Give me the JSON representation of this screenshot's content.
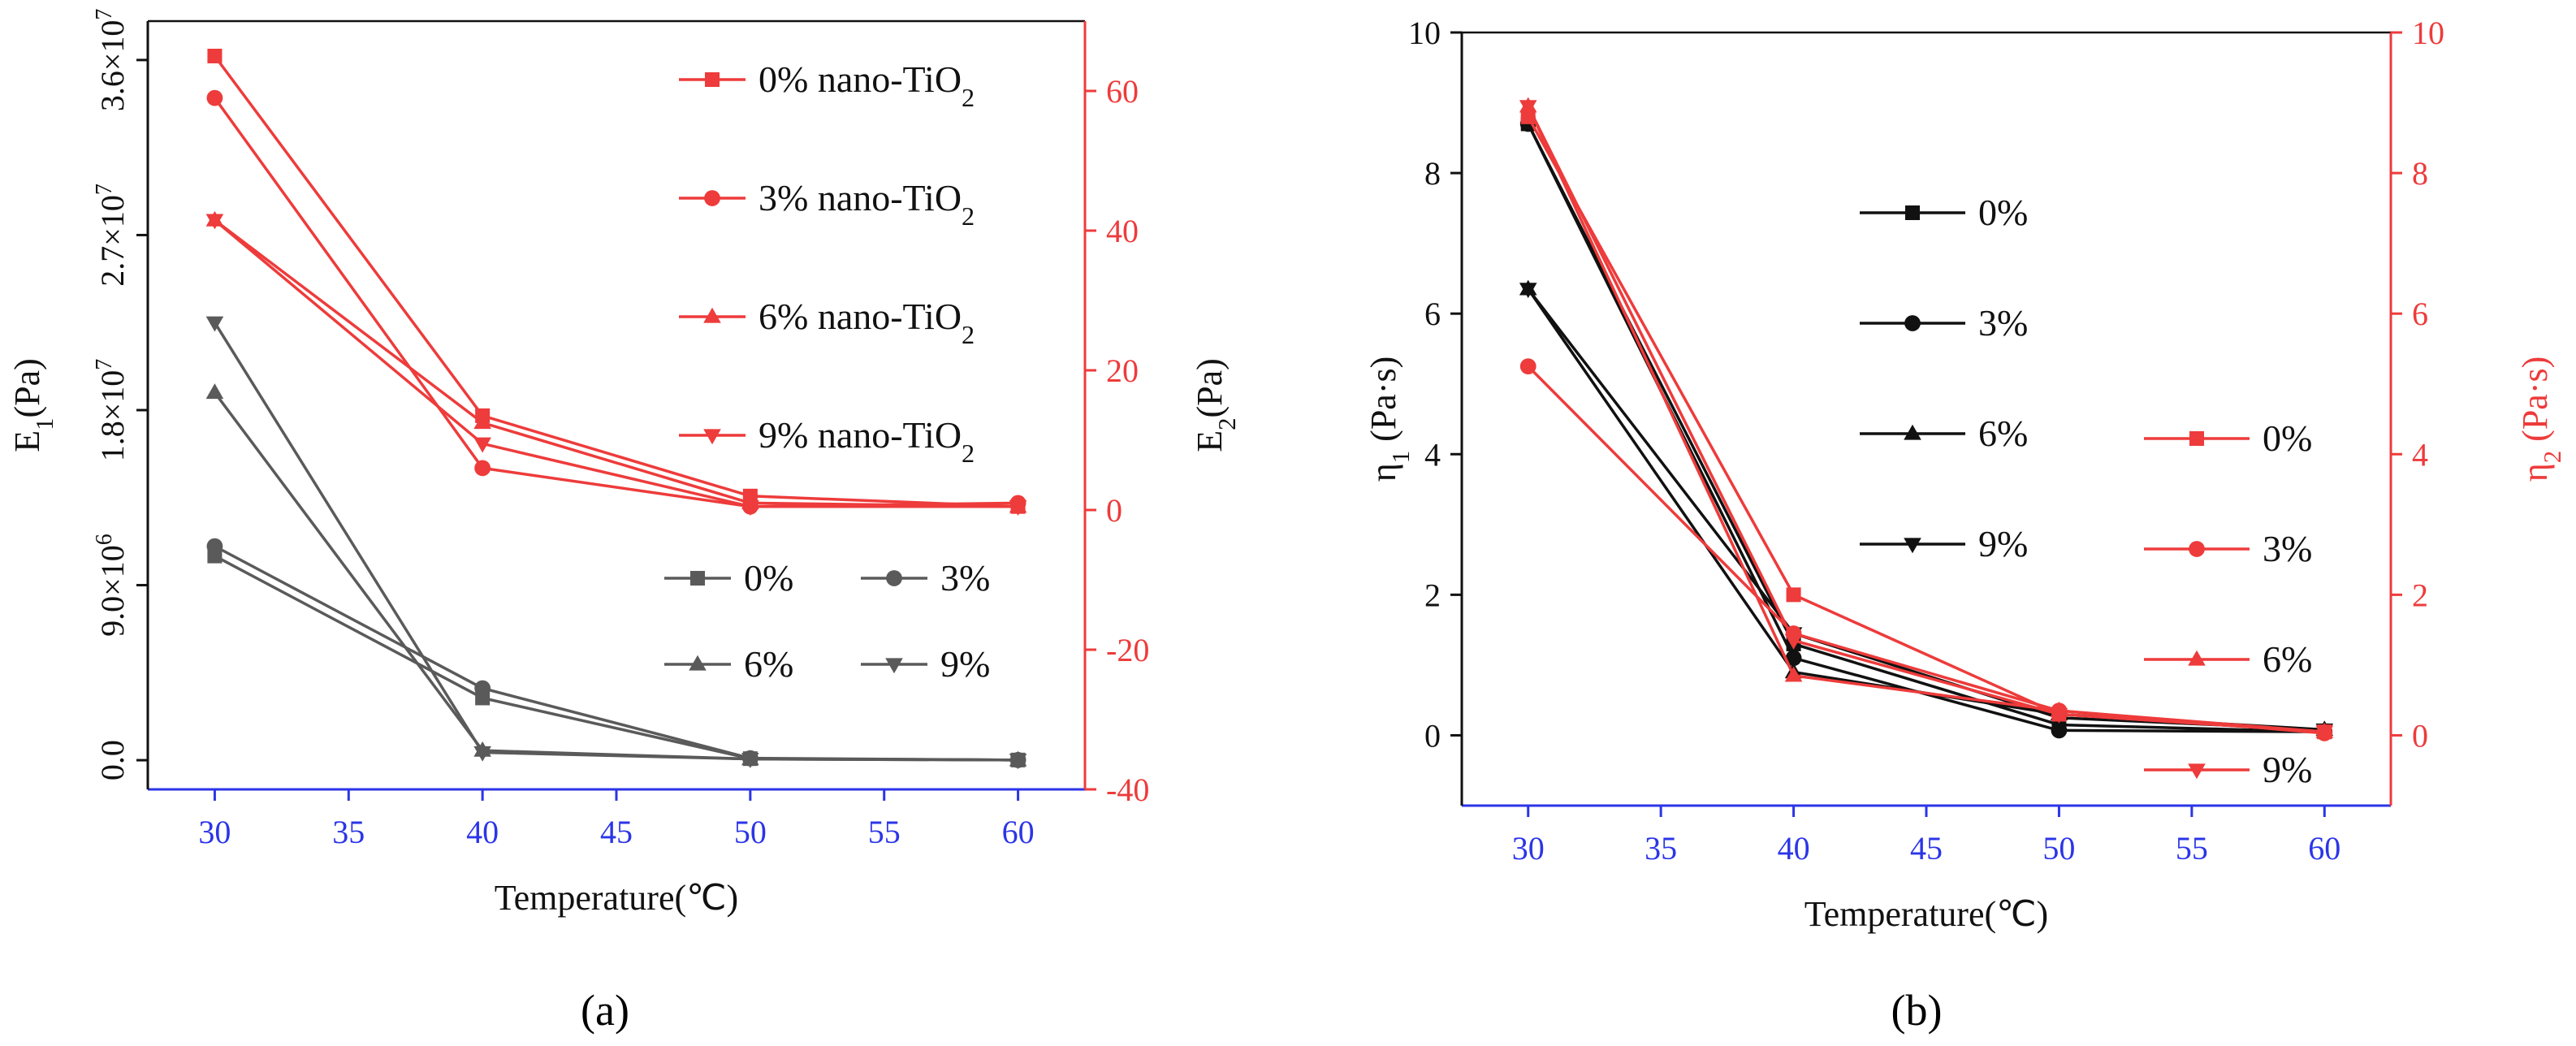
{
  "colors": {
    "red": "#ee3b3b",
    "black": "#111111",
    "gray": "#5a5a5a",
    "blue": "#2b35e8"
  },
  "panel_a_caption": "(a)",
  "panel_b_caption": "(b)",
  "chart_data": [
    {
      "id": "a",
      "type": "line",
      "title": "",
      "xlabel": "Temperature(℃)",
      "x": [
        30,
        40,
        50,
        60
      ],
      "xlim": [
        27.5,
        62.5
      ],
      "xticks": [
        "30",
        "35",
        "40",
        "45",
        "50",
        "55",
        "60"
      ],
      "y_left": {
        "label_main": "E",
        "label_sub": "1",
        "label_unit": "(Pa)",
        "lim": [
          -1500000.0,
          38000000.0
        ],
        "ticks": [
          {
            "value": 0,
            "label": "0.0"
          },
          {
            "value": 9000000,
            "label": "9.0×10",
            "exp": "6"
          },
          {
            "value": 18000000,
            "label": "1.8×10",
            "exp": "7"
          },
          {
            "value": 27000000,
            "label": "2.7×10",
            "exp": "7"
          },
          {
            "value": 36000000,
            "label": "3.6×10",
            "exp": "7"
          }
        ]
      },
      "y_right": {
        "label_main": "E",
        "label_sub": "2",
        "label_unit": "(Pa)",
        "lim": [
          -40,
          70
        ],
        "ticks": [
          "-40",
          "-20",
          "0",
          "20",
          "40",
          "60"
        ]
      },
      "series_left": [
        {
          "name": "0%",
          "marker": "square",
          "values": [
            10500000,
            3200000,
            80000,
            10000
          ]
        },
        {
          "name": "3%",
          "marker": "circle",
          "values": [
            11000000,
            3700000,
            100000,
            10000
          ]
        },
        {
          "name": "6%",
          "marker": "triangle-up",
          "values": [
            18900000,
            500000,
            60000,
            10000
          ]
        },
        {
          "name": "9%",
          "marker": "triangle-down",
          "values": [
            22500000,
            400000,
            60000,
            10000
          ]
        }
      ],
      "series_right": [
        {
          "name": "0% nano-TiO",
          "sub": "2",
          "marker": "square",
          "values": [
            65,
            13.5,
            2,
            0.5
          ]
        },
        {
          "name": "3% nano-TiO",
          "sub": "2",
          "marker": "circle",
          "values": [
            59,
            6,
            0.5,
            1
          ]
        },
        {
          "name": "6% nano-TiO",
          "sub": "2",
          "marker": "triangle-up",
          "values": [
            41.5,
            12.5,
            1,
            0.5
          ]
        },
        {
          "name": "9% nano-TiO",
          "sub": "2",
          "marker": "triangle-down",
          "values": [
            41.5,
            9.5,
            0.5,
            0.5
          ]
        }
      ]
    },
    {
      "id": "b",
      "type": "line",
      "title": "",
      "xlabel": "Temperature(℃)",
      "x": [
        30,
        40,
        50,
        60
      ],
      "xlim": [
        27.5,
        62.5
      ],
      "xticks": [
        "30",
        "35",
        "40",
        "45",
        "50",
        "55",
        "60"
      ],
      "y_left": {
        "label_main": "η",
        "label_sub": "1",
        "label_unit": " (Pa·s)",
        "lim": [
          -1,
          10
        ],
        "ticks": [
          "0",
          "2",
          "4",
          "6",
          "8",
          "10"
        ]
      },
      "y_right": {
        "label_main": "η",
        "label_sub": "2",
        "label_unit": " (Pa·s)",
        "lim": [
          -1,
          10
        ],
        "ticks": [
          "0",
          "2",
          "4",
          "6",
          "8",
          "10"
        ]
      },
      "series_left": [
        {
          "name": "0%",
          "marker": "square",
          "values": [
            8.7,
            1.3,
            0.15,
            0.05
          ]
        },
        {
          "name": "3%",
          "marker": "circle",
          "values": [
            8.7,
            1.1,
            0.07,
            0.05
          ]
        },
        {
          "name": "6%",
          "marker": "triangle-up",
          "values": [
            6.35,
            0.9,
            0.3,
            0.08
          ]
        },
        {
          "name": "9%",
          "marker": "triangle-down",
          "values": [
            6.35,
            1.45,
            0.25,
            0.08
          ]
        }
      ],
      "series_right": [
        {
          "name": "0%",
          "marker": "square",
          "values": [
            8.8,
            2.0,
            0.3,
            0.05
          ]
        },
        {
          "name": "3%",
          "marker": "circle",
          "values": [
            5.25,
            1.45,
            0.35,
            0.03
          ]
        },
        {
          "name": "6%",
          "marker": "triangle-up",
          "values": [
            8.95,
            0.85,
            0.35,
            0.05
          ]
        },
        {
          "name": "9%",
          "marker": "triangle-down",
          "values": [
            8.95,
            1.35,
            0.3,
            0.05
          ]
        }
      ]
    }
  ]
}
